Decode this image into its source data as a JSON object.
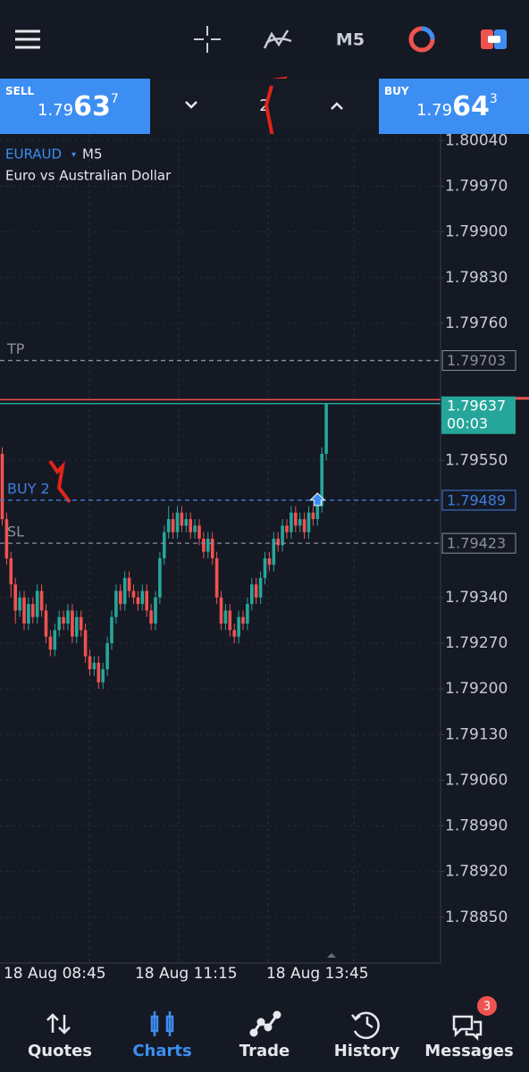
{
  "top_bar": {
    "timeframe": "M5"
  },
  "trade_bar": {
    "sell": {
      "label": "SELL",
      "price_prefix": "1.79",
      "price_big": "63",
      "price_small": "7"
    },
    "volume": 2,
    "buy": {
      "label": "BUY",
      "price_prefix": "1.79",
      "price_big": "64",
      "price_small": "3"
    }
  },
  "chart_data": {
    "type": "candlestick",
    "symbol": "EURAUD",
    "timeframe": "M5",
    "description": "Euro vs Australian Dollar",
    "categories": [
      null,
      null,
      null,
      null,
      null,
      null,
      null,
      null,
      null,
      null,
      null,
      null,
      "18 Aug 08:45",
      null,
      null,
      null,
      null,
      null,
      null,
      null,
      null,
      null,
      null,
      null,
      null,
      null,
      null,
      null,
      null,
      null,
      null,
      null,
      null,
      null,
      null,
      null,
      null,
      null,
      null,
      null,
      null,
      null,
      "18 Aug 11:15",
      null,
      null,
      null,
      null,
      null,
      null,
      null,
      null,
      null,
      null,
      null,
      null,
      null,
      null,
      null,
      null,
      null,
      null,
      null,
      null,
      null,
      null,
      null,
      null,
      null,
      null,
      null,
      null,
      null,
      "18 Aug 13:45",
      null,
      null
    ],
    "candles": [
      [
        1.7956,
        1.7957,
        1.7945,
        1.7946
      ],
      [
        1.7946,
        1.7947,
        1.7939,
        1.794
      ],
      [
        1.794,
        1.7941,
        1.7934,
        1.7936
      ],
      [
        1.7936,
        1.7937,
        1.793,
        1.7932
      ],
      [
        1.7932,
        1.7935,
        1.7931,
        1.7934
      ],
      [
        1.7934,
        1.7935,
        1.7929,
        1.793
      ],
      [
        1.793,
        1.7934,
        1.7929,
        1.7933
      ],
      [
        1.7933,
        1.7934,
        1.793,
        1.7931
      ],
      [
        1.7931,
        1.7936,
        1.793,
        1.7935
      ],
      [
        1.7935,
        1.7936,
        1.7931,
        1.7932
      ],
      [
        1.7932,
        1.7933,
        1.7927,
        1.7928
      ],
      [
        1.7928,
        1.7929,
        1.7925,
        1.7926
      ],
      [
        1.7926,
        1.793,
        1.7925,
        1.7929
      ],
      [
        1.7929,
        1.7932,
        1.7928,
        1.7931
      ],
      [
        1.7931,
        1.7932,
        1.7929,
        1.793
      ],
      [
        1.793,
        1.7933,
        1.7929,
        1.7932
      ],
      [
        1.7932,
        1.7933,
        1.7927,
        1.7928
      ],
      [
        1.7928,
        1.7932,
        1.7927,
        1.7931
      ],
      [
        1.7931,
        1.7932,
        1.7928,
        1.7929
      ],
      [
        1.7929,
        1.793,
        1.7924,
        1.7925
      ],
      [
        1.7925,
        1.7926,
        1.7922,
        1.7923
      ],
      [
        1.7923,
        1.7925,
        1.7922,
        1.7924
      ],
      [
        1.7924,
        1.7925,
        1.792,
        1.7921
      ],
      [
        1.7921,
        1.7924,
        1.792,
        1.7923
      ],
      [
        1.7923,
        1.7928,
        1.7922,
        1.7927
      ],
      [
        1.7927,
        1.7932,
        1.7926,
        1.7931
      ],
      [
        1.7931,
        1.7936,
        1.793,
        1.7935
      ],
      [
        1.7935,
        1.7936,
        1.7932,
        1.7933
      ],
      [
        1.7933,
        1.7938,
        1.7932,
        1.7937
      ],
      [
        1.7937,
        1.7938,
        1.7934,
        1.7935
      ],
      [
        1.7935,
        1.7936,
        1.7933,
        1.7934
      ],
      [
        1.7934,
        1.7935,
        1.7932,
        1.7933
      ],
      [
        1.7933,
        1.7936,
        1.7932,
        1.7935
      ],
      [
        1.7935,
        1.7936,
        1.7931,
        1.7932
      ],
      [
        1.7932,
        1.7933,
        1.7929,
        1.793
      ],
      [
        1.793,
        1.7935,
        1.7929,
        1.7934
      ],
      [
        1.7934,
        1.7941,
        1.7933,
        1.794
      ],
      [
        1.794,
        1.7945,
        1.7939,
        1.7944
      ],
      [
        1.7944,
        1.7948,
        1.7943,
        1.7946
      ],
      [
        1.7946,
        1.7947,
        1.7943,
        1.7944
      ],
      [
        1.7944,
        1.7948,
        1.7943,
        1.7947
      ],
      [
        1.7947,
        1.7948,
        1.7944,
        1.7945
      ],
      [
        1.7945,
        1.7947,
        1.7944,
        1.7946
      ],
      [
        1.7946,
        1.7947,
        1.7943,
        1.7944
      ],
      [
        1.7944,
        1.7946,
        1.7943,
        1.7945
      ],
      [
        1.7945,
        1.7946,
        1.7942,
        1.7943
      ],
      [
        1.7943,
        1.7944,
        1.794,
        1.7941
      ],
      [
        1.7941,
        1.7944,
        1.794,
        1.7943
      ],
      [
        1.7943,
        1.7944,
        1.7939,
        1.794
      ],
      [
        1.794,
        1.7941,
        1.7933,
        1.7934
      ],
      [
        1.7934,
        1.7935,
        1.7929,
        1.793
      ],
      [
        1.793,
        1.7933,
        1.7929,
        1.7932
      ],
      [
        1.7932,
        1.7933,
        1.7928,
        1.7929
      ],
      [
        1.7929,
        1.793,
        1.7927,
        1.7928
      ],
      [
        1.7928,
        1.7932,
        1.7927,
        1.7931
      ],
      [
        1.7931,
        1.7932,
        1.7929,
        1.793
      ],
      [
        1.793,
        1.7934,
        1.7929,
        1.7933
      ],
      [
        1.7933,
        1.7937,
        1.7932,
        1.7936
      ],
      [
        1.7936,
        1.7937,
        1.7933,
        1.7934
      ],
      [
        1.7934,
        1.7938,
        1.7933,
        1.7937
      ],
      [
        1.7937,
        1.7941,
        1.7936,
        1.794
      ],
      [
        1.794,
        1.7941,
        1.7938,
        1.7939
      ],
      [
        1.7939,
        1.7944,
        1.7938,
        1.7943
      ],
      [
        1.7943,
        1.7944,
        1.7941,
        1.7942
      ],
      [
        1.7942,
        1.7946,
        1.7941,
        1.7945
      ],
      [
        1.7945,
        1.7946,
        1.7943,
        1.7944
      ],
      [
        1.7944,
        1.7948,
        1.7943,
        1.7947
      ],
      [
        1.7947,
        1.7948,
        1.7944,
        1.7945
      ],
      [
        1.7945,
        1.7947,
        1.7944,
        1.7946
      ],
      [
        1.7946,
        1.7947,
        1.7943,
        1.7944
      ],
      [
        1.7944,
        1.7948,
        1.7943,
        1.7947
      ],
      [
        1.7947,
        1.7948,
        1.7945,
        1.7946
      ],
      [
        1.7946,
        1.7949,
        1.7945,
        1.7948
      ],
      [
        1.7948,
        1.7957,
        1.7947,
        1.7956
      ],
      [
        1.7956,
        1.79637,
        1.7955,
        1.79637
      ]
    ],
    "ylim": [
      1.7878,
      1.8005
    ],
    "yticks": [
      {
        "value": 1.8004,
        "label": "1.80040"
      },
      {
        "value": 1.7997,
        "label": "1.79970"
      },
      {
        "value": 1.799,
        "label": "1.79900"
      },
      {
        "value": 1.7983,
        "label": "1.79830"
      },
      {
        "value": 1.7976,
        "label": "1.79760"
      },
      {
        "value": 1.7955,
        "label": "1.79550"
      },
      {
        "value": 1.7934,
        "label": "1.79340"
      },
      {
        "value": 1.7927,
        "label": "1.79270"
      },
      {
        "value": 1.792,
        "label": "1.79200"
      },
      {
        "value": 1.7913,
        "label": "1.79130"
      },
      {
        "value": 1.7906,
        "label": "1.79060"
      },
      {
        "value": 1.7899,
        "label": "1.78990"
      },
      {
        "value": 1.7892,
        "label": "1.78920"
      },
      {
        "value": 1.7885,
        "label": "1.78850"
      }
    ],
    "grid": true,
    "up_color": "#26a69a",
    "down_color": "#ef5350",
    "levels": [
      {
        "name": "TP",
        "price": 1.79703,
        "color": "#8a8f99"
      },
      {
        "name": "BUY 2",
        "price": 1.79489,
        "color": "#3d7fe0"
      },
      {
        "name": "SL",
        "price": 1.79423,
        "color": "#8a8f99"
      }
    ],
    "bid": {
      "price": 1.79637,
      "countdown": "00:03",
      "color": "#26a69a"
    },
    "ask": {
      "price": 1.79643,
      "color": "#ef5350"
    }
  },
  "nav": {
    "items": [
      "Quotes",
      "Charts",
      "Trade",
      "History",
      "Messages"
    ],
    "active": 1,
    "badge": 3
  }
}
